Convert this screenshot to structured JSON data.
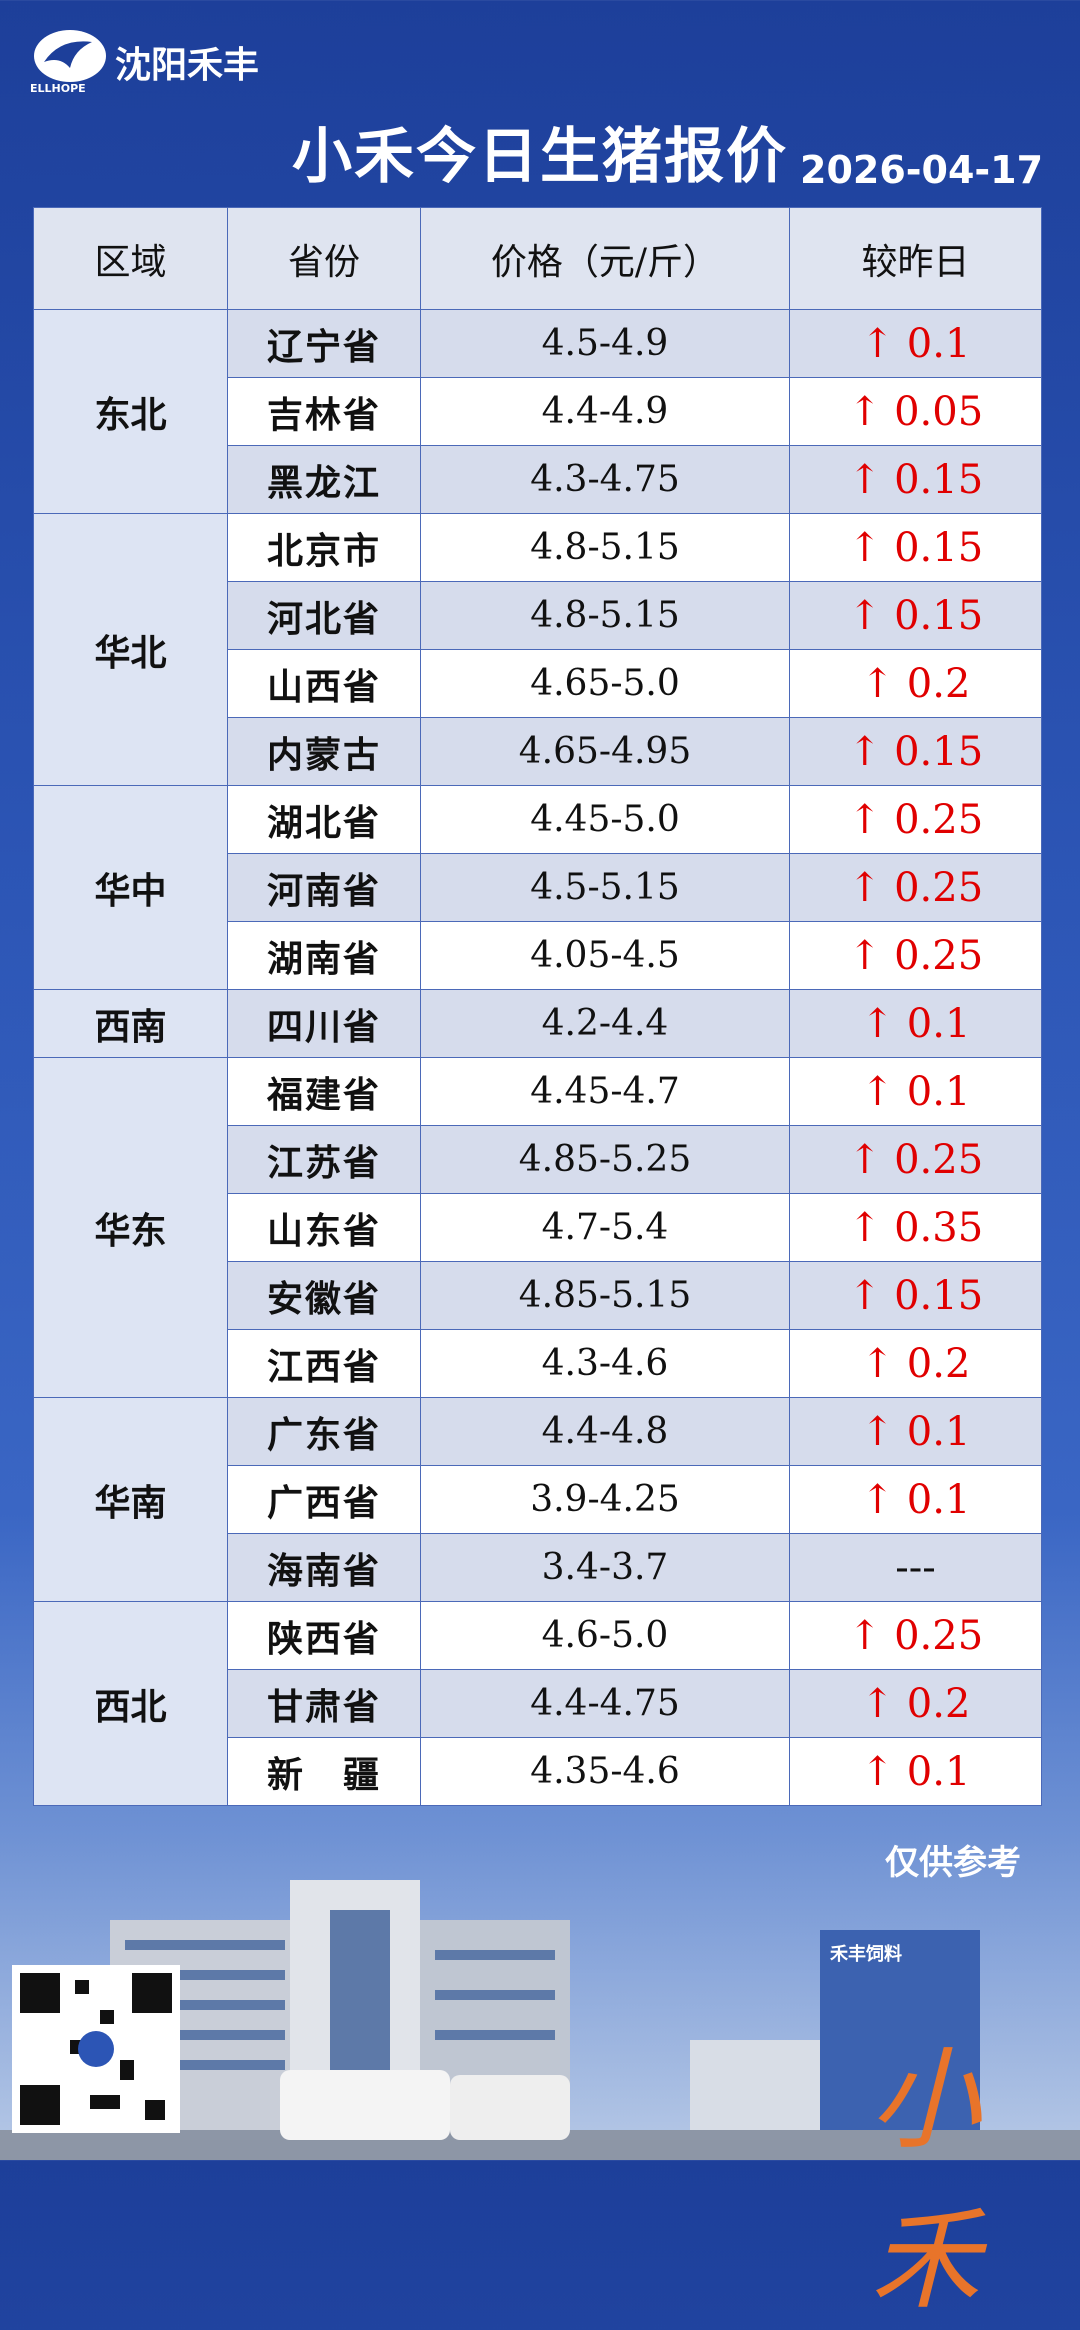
{
  "header": {
    "brand": "沈阳禾丰",
    "brand_sub": "ELLHOPE",
    "title": "小禾今日生猪报价",
    "date": "2026-04-17"
  },
  "table": {
    "columns": [
      "区域",
      "省份",
      "价格（元/斤）",
      "较昨日"
    ],
    "groups": [
      {
        "region": "东北",
        "rows": [
          [
            "辽宁省",
            "4.5-4.9",
            "↑ 0.1"
          ],
          [
            "吉林省",
            "4.4-4.9",
            "↑ 0.05"
          ],
          [
            "黑龙江",
            "4.3-4.75",
            "↑ 0.15"
          ]
        ]
      },
      {
        "region": "华北",
        "rows": [
          [
            "北京市",
            "4.8-5.15",
            "↑ 0.15"
          ],
          [
            "河北省",
            "4.8-5.15",
            "↑ 0.15"
          ],
          [
            "山西省",
            "4.65-5.0",
            "↑ 0.2"
          ],
          [
            "内蒙古",
            "4.65-4.95",
            "↑ 0.15"
          ]
        ]
      },
      {
        "region": "华中",
        "rows": [
          [
            "湖北省",
            "4.45-5.0",
            "↑ 0.25"
          ],
          [
            "河南省",
            "4.5-5.15",
            "↑ 0.25"
          ],
          [
            "湖南省",
            "4.05-4.5",
            "↑ 0.25"
          ]
        ]
      },
      {
        "region": "西南",
        "rows": [
          [
            "四川省",
            "4.2-4.4",
            "↑ 0.1"
          ]
        ]
      },
      {
        "region": "华东",
        "rows": [
          [
            "福建省",
            "4.45-4.7",
            "↑ 0.1"
          ],
          [
            "江苏省",
            "4.85-5.25",
            "↑ 0.25"
          ],
          [
            "山东省",
            "4.7-5.4",
            "↑ 0.35"
          ],
          [
            "安徽省",
            "4.85-5.15",
            "↑ 0.15"
          ],
          [
            "江西省",
            "4.3-4.6",
            "↑ 0.2"
          ]
        ]
      },
      {
        "region": "华南",
        "rows": [
          [
            "广东省",
            "4.4-4.8",
            "↑ 0.1"
          ],
          [
            "广西省",
            "3.9-4.25",
            "↑ 0.1"
          ],
          [
            "海南省",
            "3.4-3.7",
            "---"
          ]
        ]
      },
      {
        "region": "西北",
        "rows": [
          [
            "陕西省",
            "4.6-5.0",
            "↑ 0.25"
          ],
          [
            "甘肃省",
            "4.4-4.75",
            "↑ 0.2"
          ],
          [
            "新　疆",
            "4.35-4.6",
            "↑ 0.1"
          ]
        ]
      }
    ]
  },
  "footer": {
    "note": "仅供参考",
    "sign": "禾丰饲料",
    "brush": "小禾"
  }
}
